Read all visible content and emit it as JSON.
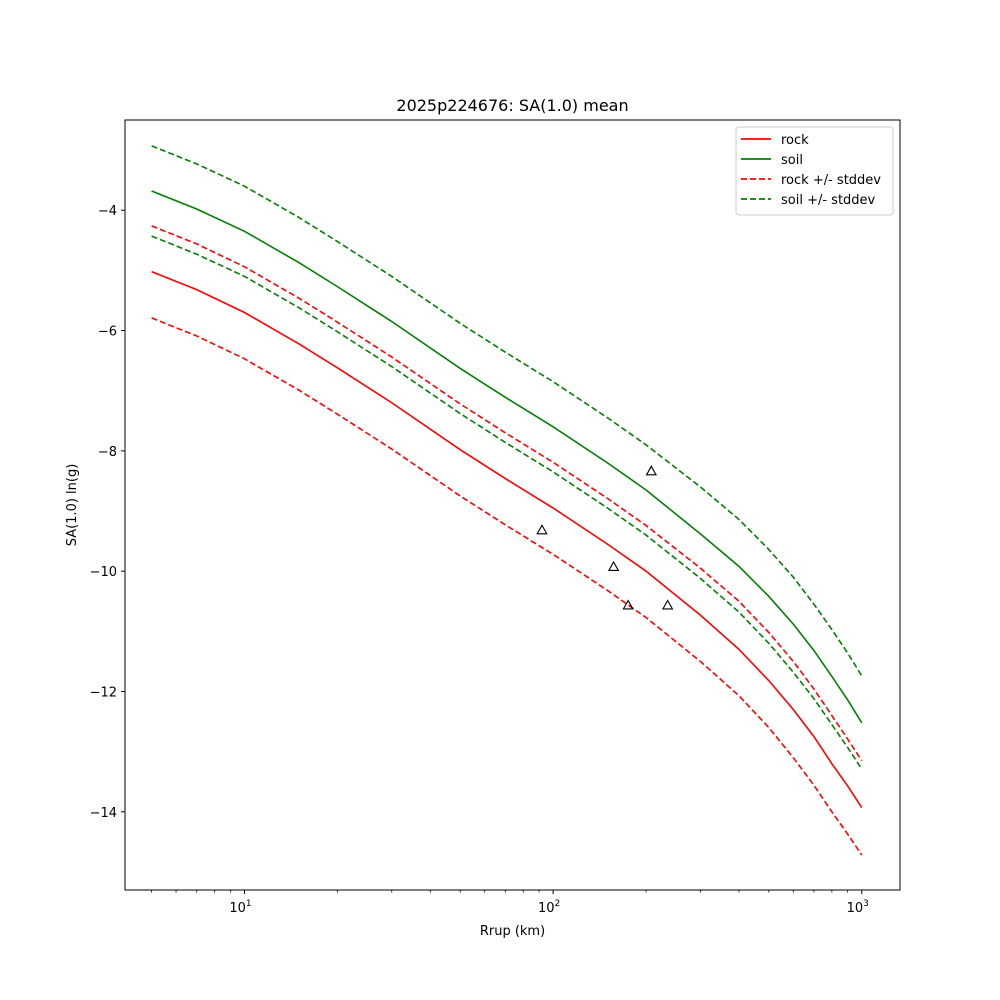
{
  "chart_data": {
    "type": "line",
    "title": "2025p224676: SA(1.0) mean",
    "xlabel": "Rrup (km)",
    "ylabel": "SA(1.0) ln(g)",
    "xscale": "log",
    "xlim": [
      4.1,
      1330
    ],
    "ylim": [
      -15.3,
      -2.5
    ],
    "yticks": [
      -14,
      -12,
      -10,
      -8,
      -6,
      -4
    ],
    "xticks": [
      10,
      100,
      1000
    ],
    "xtick_labels": [
      {
        "base": "10",
        "exp": "1"
      },
      {
        "base": "10",
        "exp": "2"
      },
      {
        "base": "10",
        "exp": "3"
      }
    ],
    "grid": false,
    "legend_position": "top-right",
    "x": [
      5,
      7,
      10,
      15,
      20,
      30,
      50,
      70,
      100,
      150,
      200,
      300,
      400,
      500,
      600,
      700,
      800,
      900,
      1000
    ],
    "series": [
      {
        "name": "rock",
        "color": "#ff0000",
        "dash": false,
        "values": [
          -5.02,
          -5.32,
          -5.7,
          -6.22,
          -6.62,
          -7.2,
          -7.98,
          -8.46,
          -8.95,
          -9.55,
          -10.0,
          -10.73,
          -11.3,
          -11.82,
          -12.3,
          -12.75,
          -13.2,
          -13.57,
          -13.93
        ]
      },
      {
        "name": "soil",
        "color": "#008000",
        "dash": false,
        "values": [
          -3.68,
          -3.98,
          -4.35,
          -4.87,
          -5.27,
          -5.85,
          -6.63,
          -7.11,
          -7.6,
          -8.2,
          -8.65,
          -9.38,
          -9.92,
          -10.42,
          -10.88,
          -11.32,
          -11.75,
          -12.14,
          -12.52
        ]
      },
      {
        "name": "rock +/- stddev",
        "color": "#ff0000",
        "dash": true,
        "values": [
          -4.26,
          -4.56,
          -4.94,
          -5.46,
          -5.86,
          -6.44,
          -7.22,
          -7.7,
          -8.19,
          -8.79,
          -9.24,
          -9.95,
          -10.5,
          -11.02,
          -11.5,
          -11.96,
          -12.4,
          -12.79,
          -13.15
        ]
      },
      {
        "name": "",
        "color": "#ff0000",
        "dash": true,
        "legend": false,
        "values": [
          -5.79,
          -6.09,
          -6.47,
          -6.99,
          -7.39,
          -7.97,
          -8.75,
          -9.23,
          -9.72,
          -10.32,
          -10.77,
          -11.5,
          -12.07,
          -12.6,
          -13.1,
          -13.56,
          -14.0,
          -14.37,
          -14.72
        ]
      },
      {
        "name": "soil +/- stddev",
        "color": "#008000",
        "dash": true,
        "values": [
          -2.93,
          -3.23,
          -3.6,
          -4.12,
          -4.52,
          -5.1,
          -5.88,
          -6.36,
          -6.85,
          -7.45,
          -7.9,
          -8.6,
          -9.14,
          -9.64,
          -10.1,
          -10.55,
          -10.97,
          -11.36,
          -11.74
        ]
      },
      {
        "name": "",
        "color": "#008000",
        "dash": true,
        "legend": false,
        "values": [
          -4.43,
          -4.73,
          -5.1,
          -5.62,
          -6.02,
          -6.6,
          -7.38,
          -7.86,
          -8.35,
          -8.95,
          -9.4,
          -10.12,
          -10.68,
          -11.2,
          -11.68,
          -12.12,
          -12.55,
          -12.93,
          -13.29
        ]
      }
    ],
    "observations": {
      "marker": "triangle",
      "points": [
        {
          "x": 92,
          "y": -9.32
        },
        {
          "x": 157,
          "y": -9.93
        },
        {
          "x": 175,
          "y": -10.57
        },
        {
          "x": 208,
          "y": -8.34
        },
        {
          "x": 235,
          "y": -10.57
        }
      ]
    }
  }
}
